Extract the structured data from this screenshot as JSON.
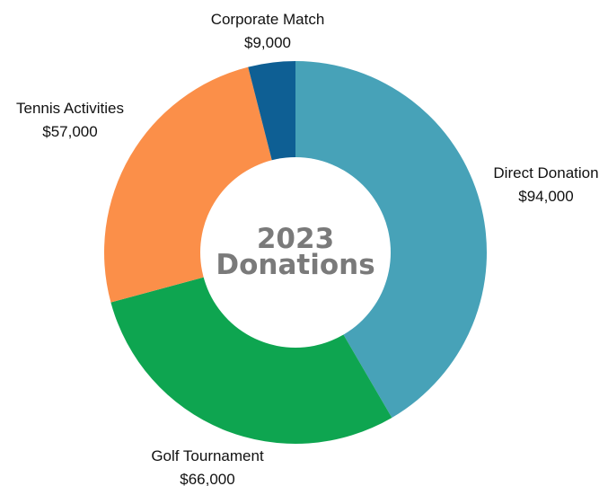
{
  "chart_data": {
    "type": "pie",
    "donut": true,
    "center_title_line1": "2023",
    "center_title_line2": "Donations",
    "slices": [
      {
        "label": "Direct Donation",
        "value_text": "$94,000",
        "value": 94000,
        "color": "#47a2b8"
      },
      {
        "label": "Golf Tournament",
        "value_text": "$66,000",
        "value": 66000,
        "color": "#0ea550"
      },
      {
        "label": "Tennis Activities",
        "value_text": "$57,000",
        "value": 57000,
        "color": "#fb8f49"
      },
      {
        "label": "Corporate Match",
        "value_text": "$9,000",
        "value": 9000,
        "color": "#0e5f94"
      }
    ]
  }
}
